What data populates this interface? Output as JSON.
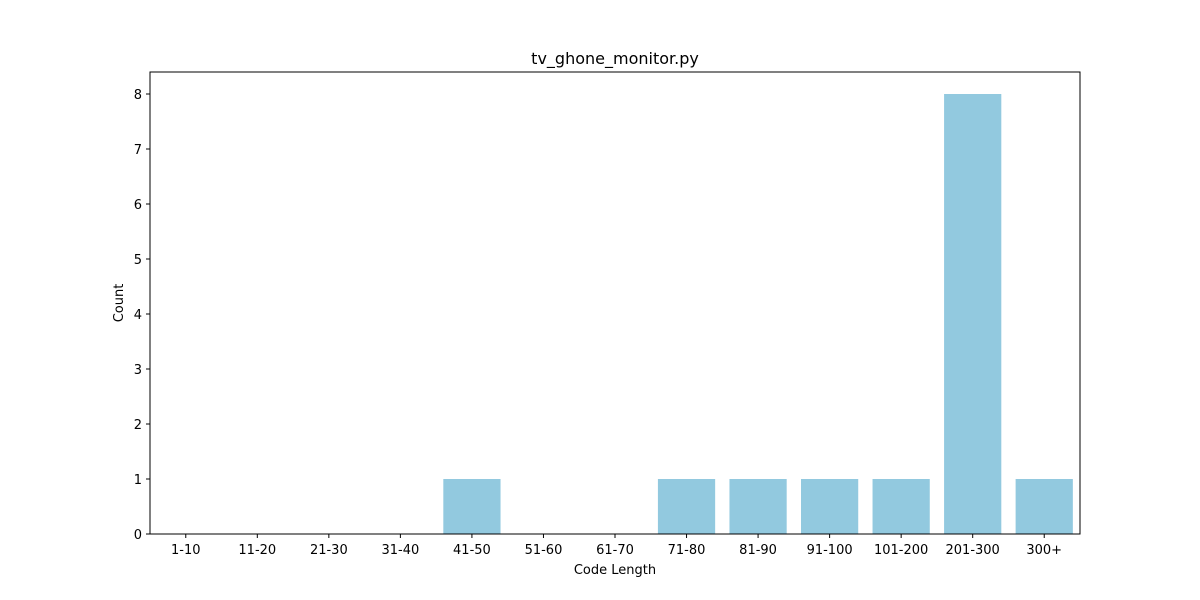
{
  "chart_data": {
    "type": "bar",
    "title": "tv_ghone_monitor.py",
    "xlabel": "Code Length",
    "ylabel": "Count",
    "categories": [
      "1-10",
      "11-20",
      "21-30",
      "31-40",
      "41-50",
      "51-60",
      "61-70",
      "71-80",
      "81-90",
      "91-100",
      "101-200",
      "201-300",
      "300+"
    ],
    "values": [
      0,
      0,
      0,
      0,
      1,
      0,
      0,
      1,
      1,
      1,
      1,
      8,
      1
    ],
    "ylim": [
      0,
      8.4
    ],
    "yticks": [
      0,
      1,
      2,
      3,
      4,
      5,
      6,
      7,
      8
    ],
    "grid": false,
    "legend": "none",
    "bar_color": "#92c9df"
  }
}
